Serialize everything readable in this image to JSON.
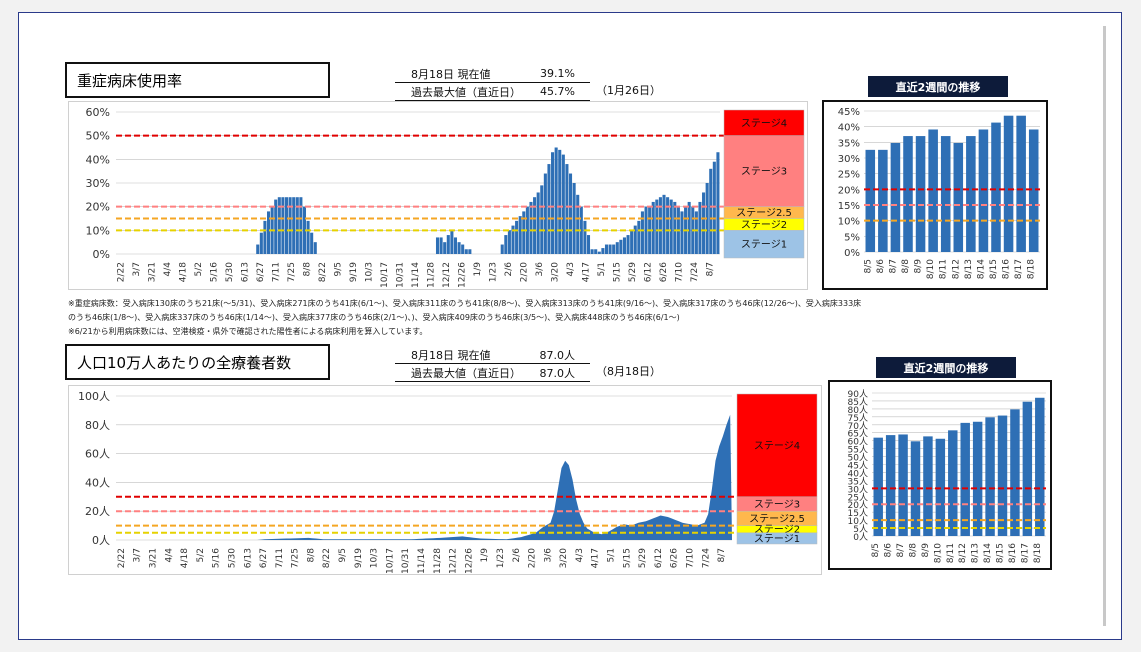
{
  "top": {
    "title": "重症病床使用率",
    "stat_label1": "8月18日 現在値",
    "stat_value1": "39.1%",
    "stat_label2": "過去最大値（直近日）",
    "stat_value2": "45.7%",
    "stat_paren": "（1月26日）",
    "mini_title": "直近2週間の推移",
    "notes": [
      "※重症病床数：受入病床130床のうち21床(～5/31)、受入病床271床のうち41床(6/1～)、受入病床311床のうち41床(8/8～)、受入病床313床のうち41床(9/16～)、受入病床317床のうち46床(12/26～)、受入病床333床",
      "のうち46床(1/8～)、受入病床337床のうち46床(1/14～)、受入病床377床のうち46床(2/1～)、)、受入病床409床のうち46床(3/5～)、受入病床448床のうち46床(6/1～)",
      "※6/21から利用病床数には、空港検疫・県外で確認された陽性者による病床利用を算入しています。"
    ]
  },
  "bottom": {
    "title": "人口10万人あたりの全療養者数",
    "stat_label1": "8月18日 現在値",
    "stat_value1": "87.0人",
    "stat_label2": "過去最大値（直近日）",
    "stat_value2": "87.0人",
    "stat_paren": "（8月18日）",
    "mini_title": "直近2週間の推移"
  },
  "chart_data": [
    {
      "type": "bar",
      "x_ticks": [
        "2/22",
        "3/7",
        "3/21",
        "4/4",
        "4/18",
        "5/2",
        "5/16",
        "5/30",
        "6/13",
        "6/27",
        "7/11",
        "7/25",
        "8/8",
        "8/22",
        "9/5",
        "9/19",
        "10/3",
        "10/17",
        "10/31",
        "11/14",
        "11/28",
        "12/12",
        "12/26",
        "1/9",
        "1/23",
        "2/6",
        "2/20",
        "3/6",
        "3/20",
        "4/3",
        "4/17",
        "5/1",
        "5/15",
        "5/29",
        "6/12",
        "6/26",
        "7/10",
        "7/24",
        "8/7"
      ],
      "y_ticks": [
        "0%",
        "10%",
        "20%",
        "30%",
        "40%",
        "50%",
        "60%"
      ],
      "ylim": [
        0,
        60
      ],
      "profile": [
        [
          0,
          0
        ],
        [
          38,
          0
        ],
        [
          39,
          4
        ],
        [
          40,
          9
        ],
        [
          41,
          14
        ],
        [
          42,
          18
        ],
        [
          43,
          20
        ],
        [
          44,
          23
        ],
        [
          45,
          24
        ],
        [
          46,
          24
        ],
        [
          47,
          24
        ],
        [
          48,
          24
        ],
        [
          49,
          24
        ],
        [
          50,
          24
        ],
        [
          51,
          24
        ],
        [
          52,
          20
        ],
        [
          53,
          14
        ],
        [
          54,
          9
        ],
        [
          55,
          5
        ],
        [
          56,
          0
        ],
        [
          88,
          0
        ],
        [
          89,
          7
        ],
        [
          90,
          7
        ],
        [
          91,
          5
        ],
        [
          92,
          8
        ],
        [
          93,
          10
        ],
        [
          94,
          7
        ],
        [
          95,
          5
        ],
        [
          96,
          4
        ],
        [
          97,
          2
        ],
        [
          98,
          2
        ],
        [
          99,
          0
        ],
        [
          106,
          0
        ],
        [
          107,
          4
        ],
        [
          108,
          8
        ],
        [
          109,
          10
        ],
        [
          110,
          12
        ],
        [
          111,
          14
        ],
        [
          112,
          16
        ],
        [
          113,
          18
        ],
        [
          114,
          20
        ],
        [
          115,
          22
        ],
        [
          116,
          24
        ],
        [
          117,
          26
        ],
        [
          118,
          29
        ],
        [
          119,
          34
        ],
        [
          120,
          38
        ],
        [
          121,
          43
        ],
        [
          122,
          45
        ],
        [
          123,
          44
        ],
        [
          124,
          42
        ],
        [
          125,
          38
        ],
        [
          126,
          34
        ],
        [
          127,
          30
        ],
        [
          128,
          25
        ],
        [
          129,
          20
        ],
        [
          130,
          14
        ],
        [
          131,
          8
        ],
        [
          132,
          2
        ],
        [
          133,
          2
        ],
        [
          134,
          1
        ],
        [
          136,
          4
        ],
        [
          138,
          4
        ],
        [
          139,
          5
        ],
        [
          140,
          6
        ],
        [
          141,
          7
        ],
        [
          142,
          8
        ],
        [
          143,
          10
        ],
        [
          144,
          12
        ],
        [
          145,
          14
        ],
        [
          146,
          18
        ],
        [
          147,
          20
        ],
        [
          148,
          20
        ],
        [
          149,
          22
        ],
        [
          150,
          23
        ],
        [
          151,
          24
        ],
        [
          152,
          25
        ],
        [
          153,
          24
        ],
        [
          154,
          23
        ],
        [
          155,
          22
        ],
        [
          156,
          20
        ],
        [
          157,
          18
        ],
        [
          158,
          20
        ],
        [
          159,
          22
        ],
        [
          160,
          20
        ],
        [
          161,
          18
        ],
        [
          162,
          22
        ],
        [
          163,
          26
        ],
        [
          164,
          30
        ],
        [
          165,
          36
        ],
        [
          166,
          39
        ],
        [
          167,
          43
        ]
      ],
      "stage_labels": [
        "ステージ4",
        "ステージ3",
        "ステージ2.5",
        "ステージ2",
        "ステージ1"
      ],
      "stage_colors": [
        "#ff0000",
        "#ff8080",
        "#ffb84d",
        "#ffff00",
        "#9dc3e6"
      ],
      "ref_lines": [
        50,
        20,
        15,
        10
      ],
      "bar_color": "#2e6fb5"
    },
    {
      "type": "bar",
      "x_ticks": [
        "8/5",
        "8/6",
        "8/7",
        "8/8",
        "8/9",
        "8/10",
        "8/11",
        "8/12",
        "8/13",
        "8/14",
        "8/15",
        "8/16",
        "8/17",
        "8/18"
      ],
      "values": [
        32.6,
        32.6,
        34.8,
        37.0,
        37.0,
        39.1,
        37.0,
        34.8,
        37.0,
        39.1,
        41.3,
        43.5,
        43.5,
        39.1
      ],
      "y_ticks": [
        "0%",
        "5%",
        "10%",
        "15%",
        "20%",
        "25%",
        "30%",
        "35%",
        "40%",
        "45%"
      ],
      "ylim": [
        0,
        45
      ],
      "ref_lines": [
        20,
        15,
        10
      ],
      "bar_color": "#2e6fb5"
    },
    {
      "type": "area",
      "x_ticks": [
        "2/22",
        "3/7",
        "3/21",
        "4/4",
        "4/18",
        "5/2",
        "5/16",
        "5/30",
        "6/13",
        "6/27",
        "7/11",
        "7/25",
        "8/8",
        "8/22",
        "9/5",
        "9/19",
        "10/3",
        "10/17",
        "10/31",
        "11/14",
        "11/28",
        "12/12",
        "12/26",
        "1/9",
        "1/23",
        "2/6",
        "2/20",
        "3/6",
        "3/20",
        "4/3",
        "4/17",
        "5/1",
        "5/15",
        "5/29",
        "6/12",
        "6/26",
        "7/10",
        "7/24",
        "8/7"
      ],
      "y_ticks": [
        "0人",
        "20人",
        "40人",
        "60人",
        "80人",
        "100人"
      ],
      "ylim": [
        0,
        100
      ],
      "profile": [
        [
          0,
          0
        ],
        [
          38,
          0
        ],
        [
          40,
          0.5
        ],
        [
          46,
          1
        ],
        [
          52,
          1.5
        ],
        [
          56,
          0.5
        ],
        [
          80,
          0.5
        ],
        [
          88,
          1.5
        ],
        [
          94,
          2.5
        ],
        [
          99,
          1
        ],
        [
          106,
          0.5
        ],
        [
          110,
          2
        ],
        [
          114,
          5
        ],
        [
          116,
          9
        ],
        [
          118,
          12
        ],
        [
          119,
          20
        ],
        [
          120,
          35
        ],
        [
          121,
          50
        ],
        [
          122,
          55
        ],
        [
          123,
          52
        ],
        [
          124,
          42
        ],
        [
          125,
          28
        ],
        [
          126,
          18
        ],
        [
          127,
          12
        ],
        [
          128,
          8
        ],
        [
          130,
          5
        ],
        [
          132,
          4
        ],
        [
          134,
          6
        ],
        [
          136,
          9
        ],
        [
          138,
          11
        ],
        [
          140,
          10
        ],
        [
          142,
          12
        ],
        [
          144,
          13
        ],
        [
          146,
          15
        ],
        [
          148,
          17
        ],
        [
          150,
          16
        ],
        [
          152,
          14
        ],
        [
          154,
          12
        ],
        [
          156,
          11
        ],
        [
          158,
          10
        ],
        [
          160,
          12
        ],
        [
          161,
          18
        ],
        [
          162,
          35
        ],
        [
          163,
          55
        ],
        [
          164,
          65
        ],
        [
          165,
          72
        ],
        [
          166,
          80
        ],
        [
          167,
          87
        ]
      ],
      "stage_labels": [
        "ステージ4",
        "ステージ3",
        "ステージ2.5",
        "ステージ2",
        "ステージ1"
      ],
      "stage_colors": [
        "#ff0000",
        "#ff8080",
        "#ffb84d",
        "#ffff00",
        "#9dc3e6"
      ],
      "ref_lines": [
        30,
        20,
        10,
        5
      ],
      "bar_color": "#2e6fb5"
    },
    {
      "type": "bar",
      "x_ticks": [
        "8/5",
        "8/6",
        "8/7",
        "8/8",
        "8/9",
        "8/10",
        "8/11",
        "8/12",
        "8/13",
        "8/14",
        "8/15",
        "8/16",
        "8/17",
        "8/18"
      ],
      "values": [
        61.9,
        63.5,
        63.9,
        59.6,
        62.7,
        61.2,
        66.5,
        71.2,
        71.9,
        74.7,
        75.8,
        79.7,
        84.5,
        87.0
      ],
      "y_ticks": [
        "0人",
        "5人",
        "10人",
        "15人",
        "20人",
        "25人",
        "30人",
        "35人",
        "40人",
        "45人",
        "50人",
        "55人",
        "60人",
        "65人",
        "70人",
        "75人",
        "80人",
        "85人",
        "90人"
      ],
      "ylim": [
        0,
        90
      ],
      "ref_lines": [
        30,
        20,
        10,
        5
      ],
      "bar_color": "#2e6fb5"
    }
  ]
}
